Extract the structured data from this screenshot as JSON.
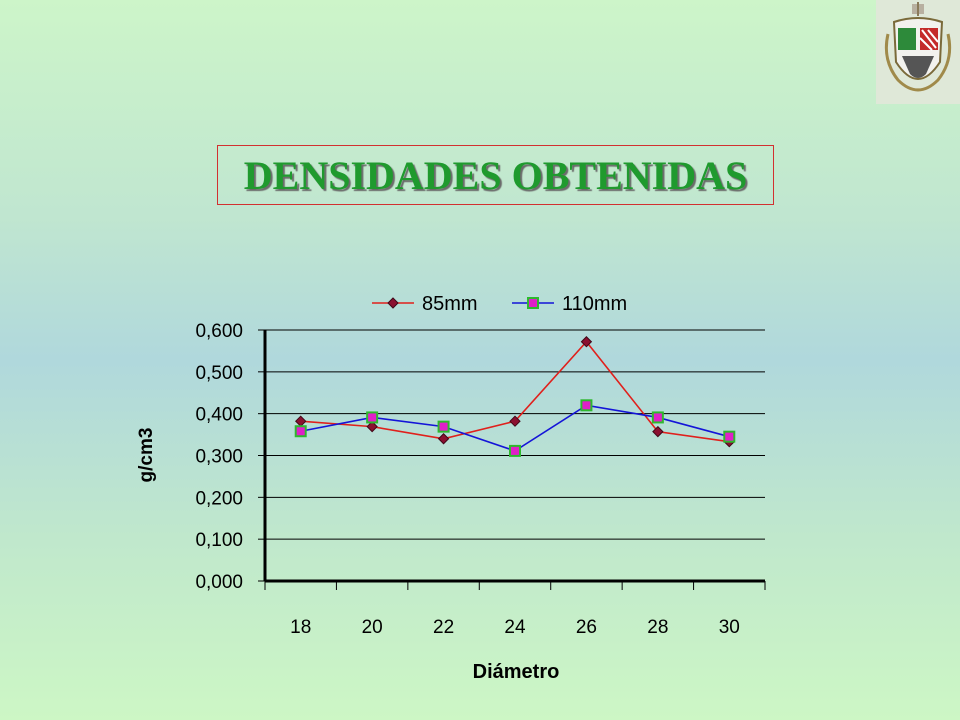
{
  "title": "DENSIDADES OBTENIDAS",
  "emblem": {
    "icon": "coat-of-arms-icon"
  },
  "colors": {
    "title_text": "#1f9a2e",
    "title_border": "#d23030",
    "series_85": "#e0201c",
    "series_110": "#1414d8",
    "marker_110_fill": "#e020c8",
    "marker_110_border": "#2eb82e",
    "marker_85_fill": "#8b1030"
  },
  "chart_data": {
    "type": "line",
    "xlabel": "Diámetro",
    "ylabel": "g/cm3",
    "categories": [
      "18",
      "20",
      "22",
      "24",
      "26",
      "28",
      "30"
    ],
    "ylim": [
      0,
      0.6
    ],
    "yticks": [
      "0,000",
      "0,100",
      "0,200",
      "0,300",
      "0,400",
      "0,500",
      "0,600"
    ],
    "grid": true,
    "legend_position": "top",
    "series": [
      {
        "name": "85mm",
        "values": [
          0.382,
          0.369,
          0.34,
          0.382,
          0.572,
          0.357,
          0.333
        ]
      },
      {
        "name": "110mm",
        "values": [
          0.358,
          0.391,
          0.369,
          0.311,
          0.42,
          0.391,
          0.345
        ]
      }
    ]
  }
}
